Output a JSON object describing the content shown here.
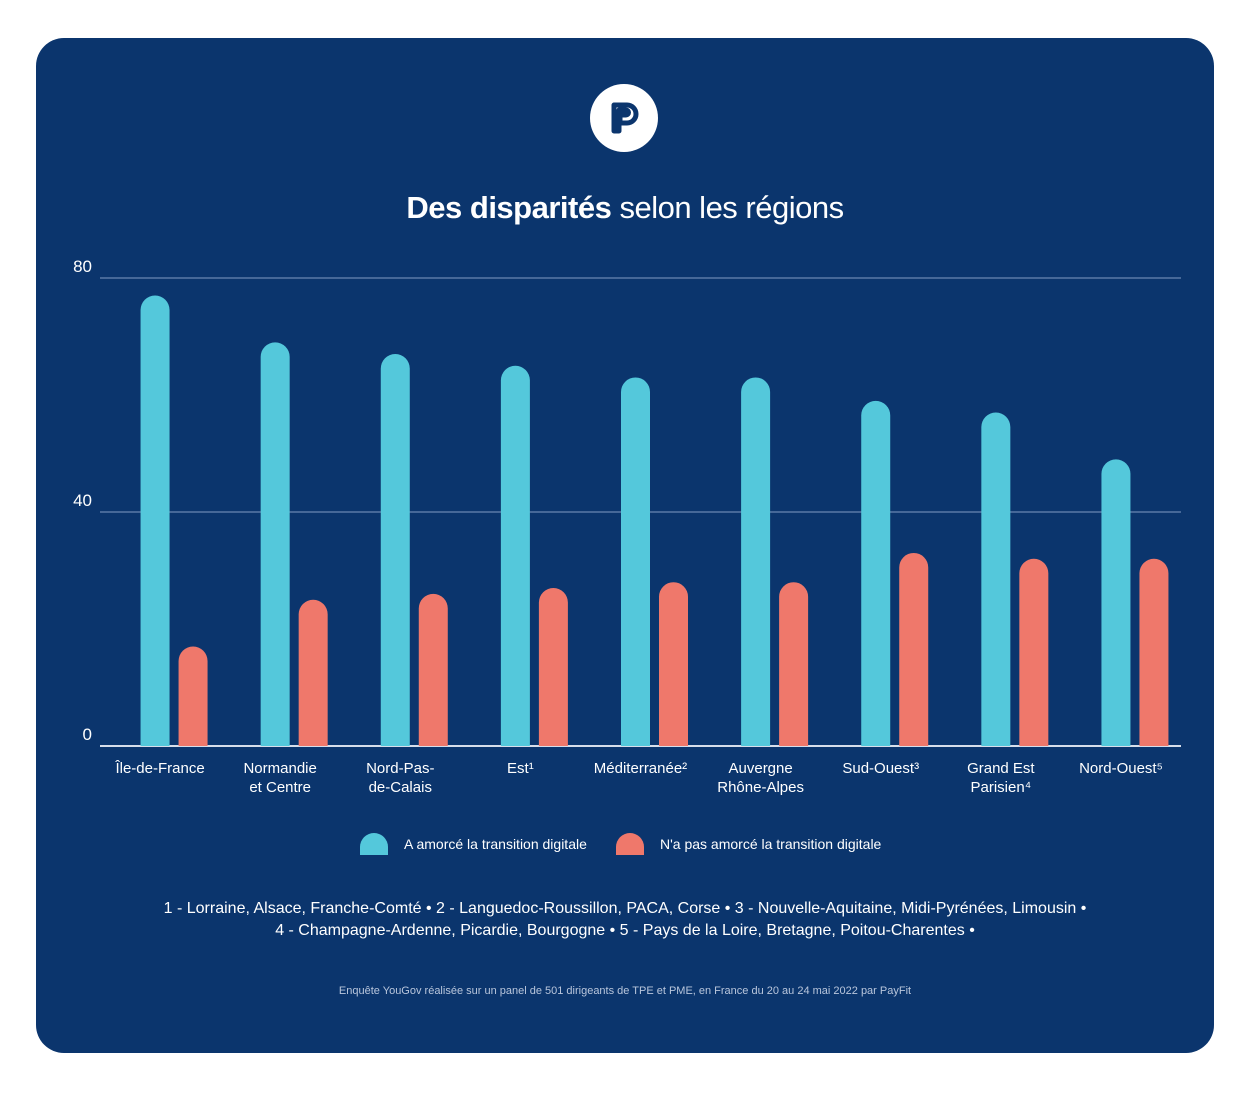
{
  "header": {
    "logo_icon": "payfit-logo-icon",
    "title_bold": "Des disparités",
    "title_rest": " selon les régions"
  },
  "colors": {
    "background": "#0b356d",
    "series_digital": "#54c8db",
    "series_not_digital": "#ef786b",
    "grid": "#5a7aa6",
    "text": "#ffffff"
  },
  "chart_data": {
    "type": "bar",
    "title": "Des disparités selon les régions",
    "ylim": [
      0,
      80
    ],
    "yticks": [
      "0",
      "40",
      "80"
    ],
    "grid": true,
    "legend_position": "bottom",
    "categories": [
      [
        "Île-de-France"
      ],
      [
        "Normandie",
        "et Centre"
      ],
      [
        "Nord-Pas-",
        "de-Calais"
      ],
      [
        "Est¹"
      ],
      [
        "Méditerranée²"
      ],
      [
        "Auvergne",
        "Rhône-Alpes"
      ],
      [
        "Sud-Ouest³"
      ],
      [
        "Grand Est",
        "Parisien⁴"
      ],
      [
        "Nord-Ouest⁵"
      ]
    ],
    "series": [
      {
        "name": "A amorcé la transition digitale",
        "color": "#54c8db",
        "values": [
          77,
          69,
          67,
          65,
          63,
          63,
          59,
          57,
          49
        ]
      },
      {
        "name": "N'a pas amorcé la transition digitale",
        "color": "#ef786b",
        "values": [
          17,
          25,
          26,
          27,
          28,
          28,
          33,
          32,
          32
        ]
      }
    ]
  },
  "notes": {
    "line1": "1 - Lorraine, Alsace, Franche-Comté • 2 -  Languedoc-Roussillon, PACA, Corse • 3 - Nouvelle-Aquitaine, Midi-Pyrénées, Limousin •",
    "line2": "4 - Champagne-Ardenne, Picardie, Bourgogne  • 5 - Pays de la Loire, Bretagne, Poitou-Charentes •"
  },
  "source": "Enquête YouGov réalisée sur un panel de 501 dirigeants de TPE et PME, en France du 20 au 24 mai 2022 par PayFit"
}
